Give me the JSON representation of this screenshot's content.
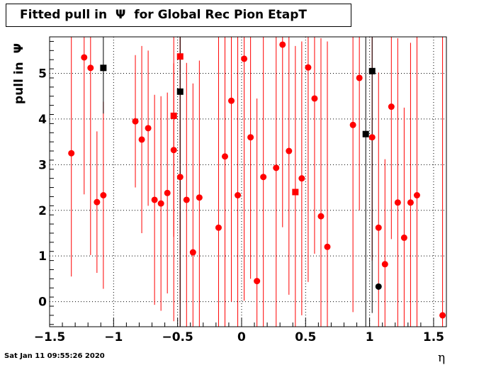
{
  "chart_data": {
    "type": "scatter",
    "title": "Fitted pull in  Ψ  for Global Rec Pion EtapT",
    "xlabel": "η",
    "ylabel": "pull in  Ψ",
    "xlim": [
      -1.5,
      1.6
    ],
    "ylim": [
      -0.55,
      5.8
    ],
    "x_ticks": [
      -1.5,
      -1,
      -0.5,
      0,
      0.5,
      1,
      1.5
    ],
    "x_tick_labels": [
      "−1.5",
      "−1",
      "−0.5",
      "0",
      "0.5",
      "1",
      "1.5"
    ],
    "y_ticks": [
      0,
      1,
      2,
      3,
      4,
      5
    ],
    "y_tick_labels": [
      "0",
      "1",
      "2",
      "3",
      "4",
      "5"
    ],
    "grid": true,
    "series": [
      {
        "marker": "circle",
        "color": "#ff0000",
        "points": [
          {
            "x": -1.33,
            "y": 3.25,
            "err": 2.7
          },
          {
            "x": -1.23,
            "y": 5.35,
            "err": 3.0
          },
          {
            "x": -1.18,
            "y": 5.12,
            "err": 4.1
          },
          {
            "x": -1.13,
            "y": 2.18,
            "err": 1.55
          },
          {
            "x": -1.08,
            "y": 2.33,
            "err": 2.05
          },
          {
            "x": -0.83,
            "y": 3.95,
            "err": 1.45
          },
          {
            "x": -0.78,
            "y": 3.55,
            "err": 2.05
          },
          {
            "x": -0.73,
            "y": 3.8,
            "err": 1.7
          },
          {
            "x": -0.68,
            "y": 2.23,
            "err": 2.3
          },
          {
            "x": -0.63,
            "y": 2.15,
            "err": 2.35
          },
          {
            "x": -0.58,
            "y": 2.38,
            "err": 2.2
          },
          {
            "x": -0.53,
            "y": 3.32,
            "err": 1.9
          },
          {
            "x": -0.48,
            "y": 2.73,
            "err": 3.6
          },
          {
            "x": -0.43,
            "y": 2.23,
            "err": 3.0
          },
          {
            "x": -0.38,
            "y": 1.08,
            "err": 3.7
          },
          {
            "x": -0.33,
            "y": 2.28,
            "err": 3.0
          },
          {
            "x": -0.18,
            "y": 1.62,
            "err": 4.5
          },
          {
            "x": -0.13,
            "y": 3.18,
            "err": 3.8
          },
          {
            "x": -0.08,
            "y": 4.4,
            "err": 4.4
          },
          {
            "x": -0.03,
            "y": 2.33,
            "err": 4.3
          },
          {
            "x": 0.02,
            "y": 5.32,
            "err": 5.3
          },
          {
            "x": 0.07,
            "y": 3.6,
            "err": 3.1
          },
          {
            "x": 0.12,
            "y": 0.45,
            "err": 4.0
          },
          {
            "x": 0.17,
            "y": 2.73,
            "err": 4.0
          },
          {
            "x": 0.27,
            "y": 2.93,
            "err": 3.5
          },
          {
            "x": 0.32,
            "y": 5.63,
            "err": 4.0
          },
          {
            "x": 0.37,
            "y": 3.3,
            "err": 3.15
          },
          {
            "x": 0.47,
            "y": 2.7,
            "err": 3.0
          },
          {
            "x": 0.52,
            "y": 5.13,
            "err": 4.7
          },
          {
            "x": 0.57,
            "y": 4.45,
            "err": 3.4
          },
          {
            "x": 0.62,
            "y": 1.87,
            "err": 3.9
          },
          {
            "x": 0.67,
            "y": 1.2,
            "err": 4.5
          },
          {
            "x": 0.87,
            "y": 3.87,
            "err": 4.1
          },
          {
            "x": 0.92,
            "y": 4.9,
            "err": 2.9
          },
          {
            "x": 1.02,
            "y": 3.6,
            "err": 2.7
          },
          {
            "x": 1.07,
            "y": 1.62,
            "err": 3.4
          },
          {
            "x": 1.12,
            "y": 0.82,
            "err": 2.3
          },
          {
            "x": 1.17,
            "y": 4.27,
            "err": 2.9
          },
          {
            "x": 1.22,
            "y": 2.17,
            "err": 3.6
          },
          {
            "x": 1.27,
            "y": 1.4,
            "err": 2.85
          },
          {
            "x": 1.32,
            "y": 2.17,
            "err": 3.5
          },
          {
            "x": 1.37,
            "y": 2.33,
            "err": 3.5
          },
          {
            "x": 1.57,
            "y": -0.3,
            "err": 6.2
          }
        ]
      },
      {
        "marker": "square",
        "color": "#ff0000",
        "points": [
          {
            "x": -0.53,
            "y": 4.07,
            "err": 4.5
          },
          {
            "x": -0.48,
            "y": 5.37,
            "err": 5.4
          },
          {
            "x": 0.42,
            "y": 2.4,
            "err": 3.2
          }
        ]
      },
      {
        "marker": "square",
        "color": "#000000",
        "points": [
          {
            "x": -1.08,
            "y": 5.12,
            "err": 1.0
          },
          {
            "x": -0.48,
            "y": 4.6,
            "err": 5.3
          },
          {
            "x": 0.97,
            "y": 3.67,
            "err": 4.5
          },
          {
            "x": 1.02,
            "y": 5.05,
            "err": 5.3
          }
        ]
      },
      {
        "marker": "circle",
        "color": "#000000",
        "points": [
          {
            "x": 1.07,
            "y": 0.33,
            "err": 0
          }
        ]
      }
    ]
  },
  "footer": {
    "date": "Sat Jan 11 09:55:26 2020"
  }
}
